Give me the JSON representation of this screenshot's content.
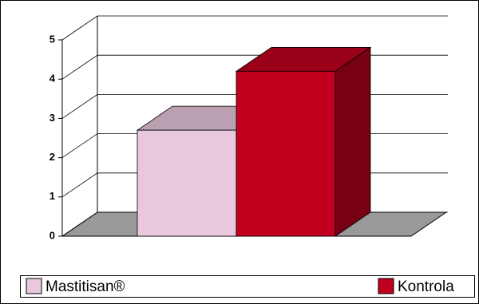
{
  "chart_data": {
    "type": "bar3d",
    "categories": [
      null
    ],
    "series": [
      {
        "name": "Mastitisan®",
        "color": "#e8c8dc",
        "values": [
          2.7
        ]
      },
      {
        "name": "Kontrola",
        "color": "#c0001e",
        "values": [
          4.2
        ]
      }
    ],
    "ylim": [
      0,
      5
    ],
    "yticks": [
      0,
      1,
      2,
      3,
      4,
      5
    ],
    "grid": true,
    "legend": "bottom"
  }
}
